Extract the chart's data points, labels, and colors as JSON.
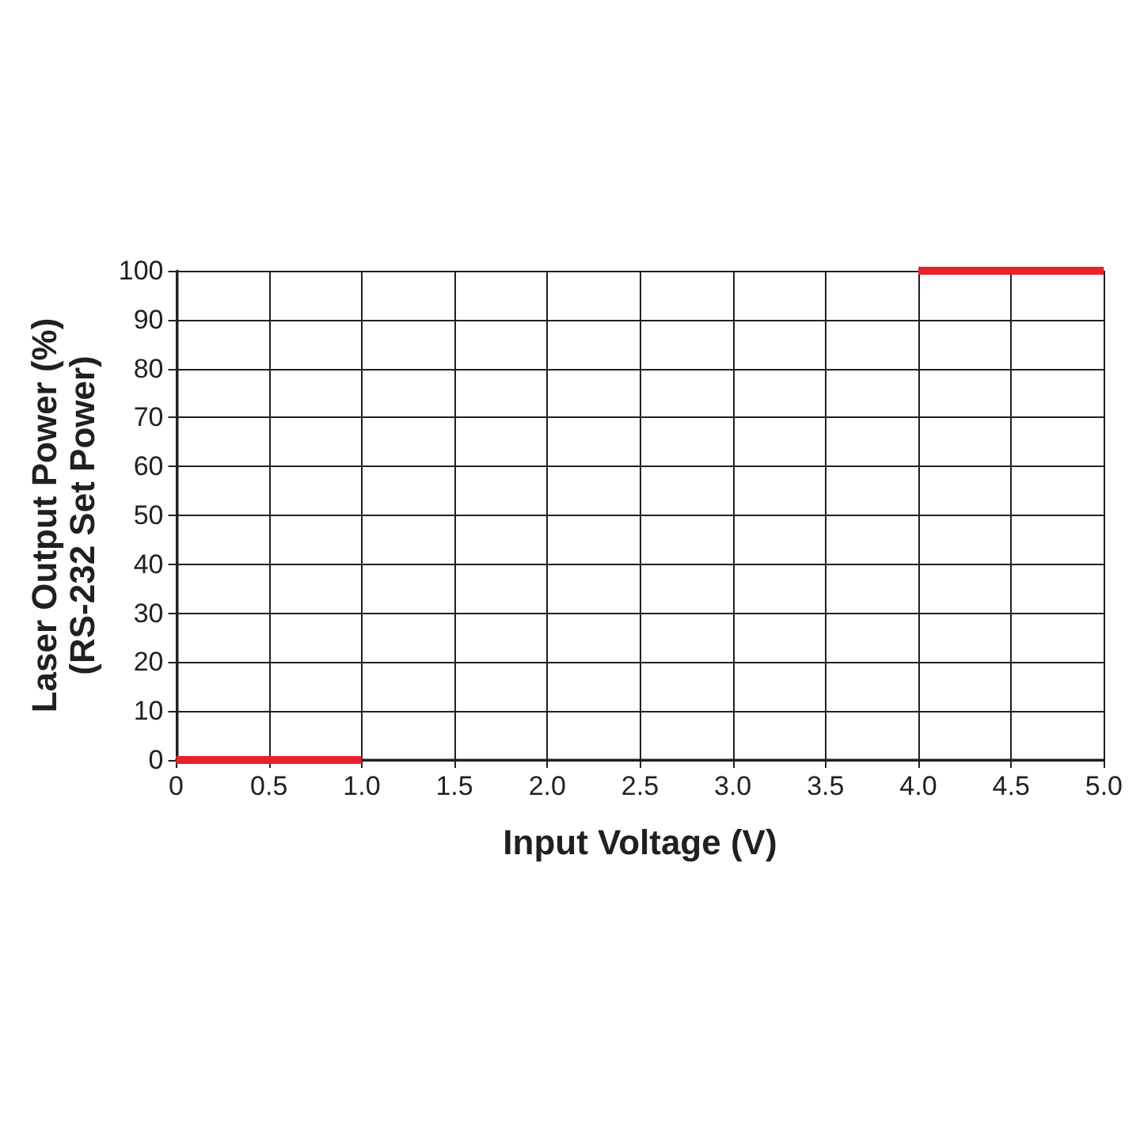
{
  "chart_data": {
    "type": "line",
    "xlabel": "Input Voltage (V)",
    "ylabel": "Laser Output Power (%)\n(RS-232 Set Power)",
    "series": [
      {
        "color": "#e8202a",
        "x": [
          0,
          1
        ],
        "values": [
          0,
          0
        ]
      },
      {
        "color": "#e8202a",
        "x": [
          4,
          5
        ],
        "values": [
          100,
          100
        ]
      }
    ],
    "xlim": [
      0,
      5
    ],
    "xticks": [
      0,
      0.5,
      {
        "value": 1,
        "label": "1.0"
      },
      1.5,
      {
        "value": 2,
        "label": "2.0"
      },
      2.5,
      {
        "value": 3,
        "label": "3.0"
      },
      3.5,
      {
        "value": 4,
        "label": "4.0"
      },
      4.5,
      {
        "value": 5,
        "label": "5.0"
      }
    ],
    "ylim": [
      0,
      100
    ],
    "yticks": [
      0,
      10,
      20,
      30,
      40,
      50,
      60,
      70,
      80,
      90,
      100
    ],
    "grid": true,
    "marker": "none",
    "line_style": "solid"
  }
}
